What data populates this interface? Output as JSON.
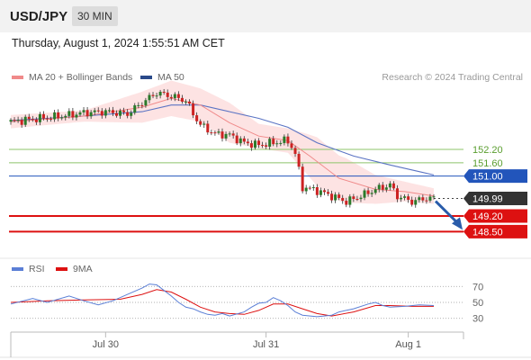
{
  "header": {
    "symbol": "USD/JPY",
    "timeframe": "30 MIN"
  },
  "datetime": "Thursday, August 1, 2024 1:55:51 AM CET",
  "legend": {
    "ma20_label": "MA 20 + Bollinger Bands",
    "ma50_label": "MA 50",
    "rsi_label": "RSI",
    "rsi_ma_label": "9MA"
  },
  "credit": "Research © 2024 Trading Central",
  "colors": {
    "ma20": "#f08a8a",
    "bands_fill": "#fde0e0",
    "ma50": "#5b74c4",
    "candle_up": "#2a7a2a",
    "candle_down": "#cc2222",
    "resistance": "#8cc46a",
    "pivot": "#2255bb",
    "support": "#dd1111",
    "current": "#333333",
    "rsi": "#5b7fd6",
    "rsi_ma": "#dd1111",
    "arrow": "#2a5caa"
  },
  "chart_data": [
    {
      "type": "candlestick",
      "title": "USD/JPY",
      "timeframe": "30 MIN",
      "x_tick_labels": [
        "Jul 30",
        "Jul 31",
        "Aug 1"
      ],
      "y_range": [
        147.5,
        155.2
      ],
      "levels": [
        {
          "value": 152.2,
          "label": "152.20",
          "role": "resistance"
        },
        {
          "value": 151.6,
          "label": "151.60",
          "role": "resistance"
        },
        {
          "value": 151.0,
          "label": "151.00",
          "role": "pivot"
        },
        {
          "value": 149.99,
          "label": "149.99",
          "role": "current"
        },
        {
          "value": 149.2,
          "label": "149.20",
          "role": "support"
        },
        {
          "value": 148.5,
          "label": "148.50",
          "role": "support"
        }
      ],
      "close_path": [
        [
          0,
          153.45
        ],
        [
          8,
          153.6
        ],
        [
          14,
          153.7
        ],
        [
          20,
          153.85
        ],
        [
          26,
          153.9
        ],
        [
          32,
          153.8
        ],
        [
          36,
          154.3
        ],
        [
          40,
          154.75
        ],
        [
          44,
          154.6
        ],
        [
          48,
          154.4
        ],
        [
          50,
          153.8
        ],
        [
          52,
          153.3
        ],
        [
          56,
          152.9
        ],
        [
          60,
          152.85
        ],
        [
          64,
          152.5
        ],
        [
          68,
          152.4
        ],
        [
          72,
          152.5
        ],
        [
          76,
          152.6
        ],
        [
          78,
          152.0
        ],
        [
          80,
          150.5
        ],
        [
          84,
          150.35
        ],
        [
          88,
          150.1
        ],
        [
          92,
          149.85
        ],
        [
          96,
          150.1
        ],
        [
          100,
          150.4
        ],
        [
          104,
          150.6
        ],
        [
          106,
          150.1
        ],
        [
          110,
          149.85
        ],
        [
          114,
          150.0
        ],
        [
          116,
          149.99
        ]
      ],
      "ma20_path": [
        [
          0,
          153.45
        ],
        [
          20,
          153.7
        ],
        [
          36,
          154.1
        ],
        [
          44,
          154.5
        ],
        [
          52,
          154.2
        ],
        [
          60,
          153.4
        ],
        [
          68,
          152.8
        ],
        [
          76,
          152.6
        ],
        [
          82,
          151.9
        ],
        [
          90,
          150.9
        ],
        [
          100,
          150.4
        ],
        [
          108,
          150.3
        ],
        [
          116,
          150.1
        ]
      ],
      "ma50_path": [
        [
          0,
          153.5
        ],
        [
          20,
          153.7
        ],
        [
          36,
          153.9
        ],
        [
          44,
          154.2
        ],
        [
          52,
          154.2
        ],
        [
          60,
          153.9
        ],
        [
          68,
          153.6
        ],
        [
          76,
          153.2
        ],
        [
          84,
          152.5
        ],
        [
          94,
          151.9
        ],
        [
          104,
          151.5
        ],
        [
          112,
          151.2
        ],
        [
          116,
          151.05
        ]
      ],
      "bollinger_width_path": [
        [
          0,
          0.3
        ],
        [
          20,
          0.25
        ],
        [
          36,
          0.7
        ],
        [
          44,
          0.8
        ],
        [
          52,
          0.75
        ],
        [
          60,
          0.9
        ],
        [
          68,
          0.55
        ],
        [
          76,
          0.55
        ],
        [
          84,
          1.1
        ],
        [
          92,
          1.0
        ],
        [
          100,
          0.65
        ],
        [
          108,
          0.45
        ],
        [
          116,
          0.35
        ]
      ],
      "projection": {
        "from": 149.99,
        "to": 148.5
      },
      "legend": [
        "MA 20 + Bollinger Bands",
        "MA 50"
      ]
    },
    {
      "type": "line",
      "title": "RSI",
      "y_tick_labels": [
        "70",
        "50",
        "30"
      ],
      "y_ticks": [
        70,
        50,
        30
      ],
      "y_range": [
        15,
        85
      ],
      "series": [
        {
          "name": "RSI",
          "path": [
            [
              0,
              48
            ],
            [
              6,
              55
            ],
            [
              10,
              50
            ],
            [
              16,
              58
            ],
            [
              20,
              52
            ],
            [
              24,
              47
            ],
            [
              28,
              52
            ],
            [
              32,
              60
            ],
            [
              36,
              68
            ],
            [
              38,
              73
            ],
            [
              40,
              72
            ],
            [
              42,
              65
            ],
            [
              44,
              58
            ],
            [
              46,
              50
            ],
            [
              48,
              44
            ],
            [
              50,
              42
            ],
            [
              52,
              38
            ],
            [
              54,
              35
            ],
            [
              56,
              34
            ],
            [
              58,
              36
            ],
            [
              60,
              33
            ],
            [
              64,
              38
            ],
            [
              66,
              44
            ],
            [
              68,
              49
            ],
            [
              70,
              50
            ],
            [
              72,
              56
            ],
            [
              74,
              52
            ],
            [
              76,
              46
            ],
            [
              78,
              38
            ],
            [
              80,
              34
            ],
            [
              84,
              32
            ],
            [
              88,
              34
            ],
            [
              90,
              38
            ],
            [
              94,
              42
            ],
            [
              98,
              48
            ],
            [
              100,
              50
            ],
            [
              102,
              46
            ],
            [
              104,
              44
            ],
            [
              108,
              45
            ],
            [
              112,
              47
            ],
            [
              116,
              46
            ]
          ]
        },
        {
          "name": "9MA",
          "path": [
            [
              0,
              50
            ],
            [
              10,
              52
            ],
            [
              20,
              53
            ],
            [
              30,
              54
            ],
            [
              36,
              60
            ],
            [
              40,
              66
            ],
            [
              44,
              63
            ],
            [
              48,
              54
            ],
            [
              52,
              44
            ],
            [
              56,
              38
            ],
            [
              60,
              36
            ],
            [
              64,
              35
            ],
            [
              68,
              40
            ],
            [
              72,
              48
            ],
            [
              76,
              48
            ],
            [
              80,
              42
            ],
            [
              84,
              36
            ],
            [
              88,
              33
            ],
            [
              94,
              38
            ],
            [
              100,
              46
            ],
            [
              104,
              46
            ],
            [
              110,
              45
            ],
            [
              116,
              45
            ]
          ]
        }
      ],
      "legend": [
        "RSI",
        "9MA"
      ]
    }
  ]
}
